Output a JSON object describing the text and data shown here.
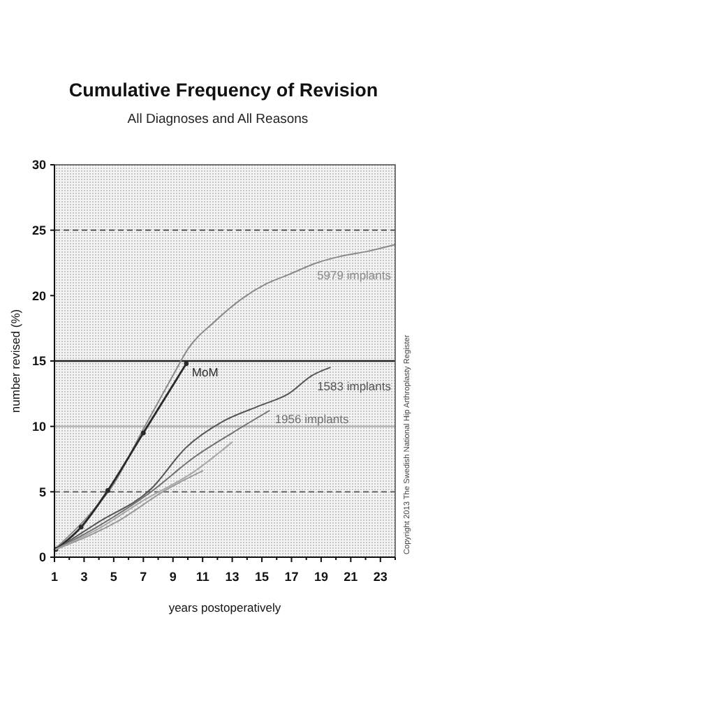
{
  "chart_data": {
    "type": "line",
    "title": "Cumulative Frequency of Revision",
    "subtitle": "All Diagnoses and All Reasons",
    "xlabel": "years postoperatively",
    "ylabel": "number revised (%)",
    "annotations": [
      "Copyright 2013 The Swedish National Hip Arthroplasty Register"
    ],
    "xlim": [
      1,
      24
    ],
    "xticks": [
      1,
      {
        "value": 2,
        "label": null
      },
      3,
      {
        "value": 4,
        "label": null
      },
      5,
      {
        "value": 6,
        "label": null
      },
      7,
      {
        "value": 8,
        "label": null
      },
      9,
      {
        "value": 10,
        "label": null
      },
      11,
      {
        "value": 12,
        "label": null
      },
      13,
      {
        "value": 14,
        "label": null
      },
      15,
      {
        "value": 16,
        "label": null
      },
      17,
      {
        "value": 18,
        "label": null
      },
      19,
      {
        "value": 20,
        "label": null
      },
      21,
      {
        "value": 22,
        "label": null
      },
      23,
      {
        "value": 24,
        "label": null
      }
    ],
    "ylim": [
      0,
      30
    ],
    "yticks": [
      0,
      5,
      10,
      15,
      20,
      25,
      30
    ],
    "marker": "none",
    "line_style": "solid",
    "ref_lines": [
      {
        "axis": "y",
        "value": 25,
        "color": "#444444",
        "line_style": "dashed"
      },
      {
        "axis": "y",
        "value": 15,
        "color": "#222222",
        "line_style": "solid"
      },
      {
        "axis": "y",
        "value": 10,
        "color": "#b0b0b0",
        "line_style": "solid"
      },
      {
        "axis": "y",
        "value": 5,
        "color": "#555555",
        "line_style": "dashed"
      }
    ],
    "series": [
      {
        "name": "5979 implants",
        "color": "#8a8a8a",
        "x": [
          1,
          3,
          5,
          7,
          9,
          10,
          11.8,
          13.7,
          15.3,
          16.8,
          18.7,
          20.3,
          22.2,
          24
        ],
        "values": [
          0.6,
          2.8,
          5.6,
          9.8,
          13.9,
          15.9,
          18,
          19.8,
          20.9,
          21.6,
          22.5,
          23,
          23.4,
          23.9
        ]
      },
      {
        "name": "MoM",
        "color": "#2a2a2a",
        "marker": "circle",
        "x": [
          1.1,
          2.8,
          4.6,
          7,
          9.9
        ],
        "values": [
          0.6,
          2.3,
          5.1,
          9.5,
          14.8
        ]
      },
      {
        "name": "1583 implants",
        "color": "#555555",
        "x": [
          1.1,
          4,
          7.5,
          9.9,
          12.4,
          14.9,
          16.8,
          18.4,
          19.6
        ],
        "values": [
          0.6,
          2.7,
          5.2,
          8.4,
          10.4,
          11.6,
          12.5,
          13.9,
          14.5
        ]
      },
      {
        "name": "1956 implants",
        "color": "#707070",
        "x": [
          1.1,
          4,
          7.4,
          10.5,
          13,
          15.5
        ],
        "values": [
          0.6,
          2.4,
          4.9,
          7.7,
          9.5,
          11.2
        ]
      },
      {
        "color": "#a8a8a8",
        "x": [
          1.1,
          4,
          6.8,
          10.5,
          13
        ],
        "values": [
          0.6,
          2.2,
          4.2,
          6.6,
          8.8
        ]
      },
      {
        "color": "#9a9a9a",
        "x": [
          1.1,
          5.2,
          8.6,
          11
        ],
        "values": [
          0.6,
          2.7,
          5.2,
          6.6
        ]
      }
    ]
  }
}
